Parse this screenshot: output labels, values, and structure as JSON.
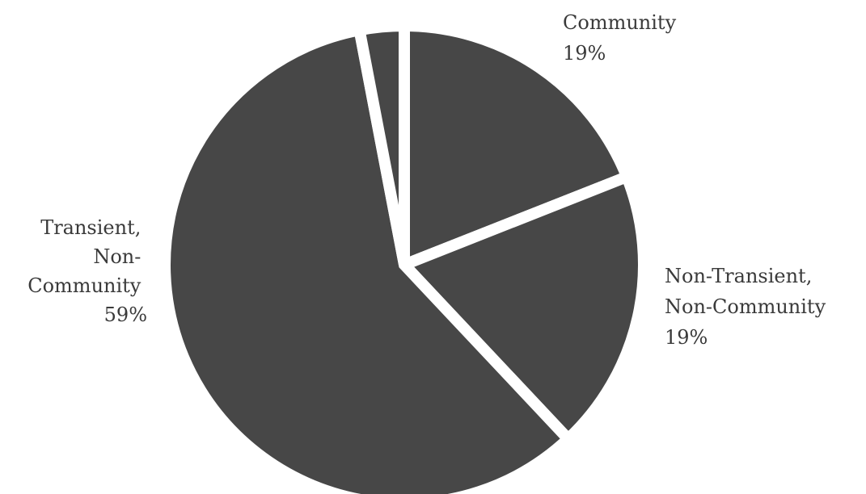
{
  "chart_data": {
    "type": "pie",
    "slices": [
      {
        "name": "Community",
        "value": 19,
        "label_lines": [
          "Community"
        ],
        "pct_text": "19%"
      },
      {
        "name": "Non-Transient, Non-Community",
        "value": 19,
        "label_lines": [
          "Non-Transient,",
          "Non-Community"
        ],
        "pct_text": "19%"
      },
      {
        "name": "Transient, Non-Community",
        "value": 59,
        "label_lines": [
          "Transient,",
          "Non-",
          "Community"
        ],
        "pct_text": "59%"
      },
      {
        "name": "",
        "value": 3,
        "label_lines": [],
        "pct_text": ""
      }
    ],
    "start_angle": "12 o'clock",
    "direction": "clockwise",
    "colors": {
      "slice": "#474747",
      "label": "#3a3a3a",
      "background": "#ffffff"
    },
    "legend": "none",
    "title": ""
  }
}
